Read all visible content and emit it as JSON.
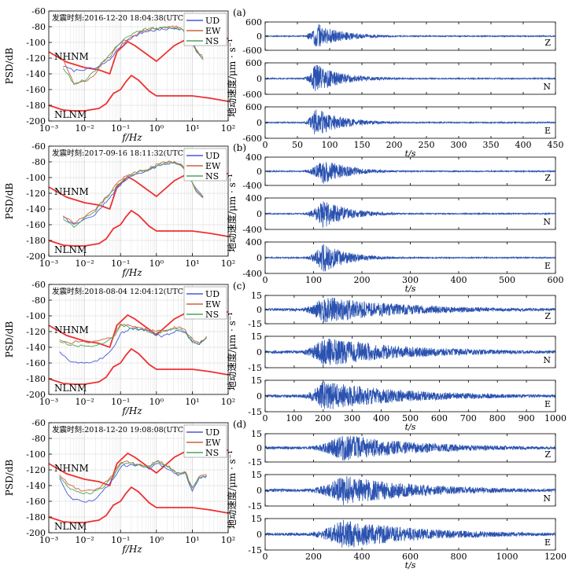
{
  "figure": {
    "psd_ylabel": "PSD/dB",
    "psd_xlabel": "f/Hz",
    "seis_ylabel": "地动速度/μm · s⁻¹",
    "seis_xlabel": "t/s",
    "colors": {
      "ud": "#4a58d8",
      "ew": "#d06040",
      "ns": "#4aa858",
      "nhnm": "#ee3030",
      "trace": "#2a52b0"
    }
  },
  "chart_data": [
    {
      "type": "line",
      "panel": "a",
      "psd": {
        "title": "发震时刻:2016-12-20 18:04:38(UTC+8)",
        "legend": [
          "UD",
          "EW",
          "NS"
        ],
        "nhnm_label": "NHNM",
        "nlnm_label": "NLNM",
        "xlim_log10": [
          -3,
          2
        ],
        "ylim": [
          -200,
          -60
        ],
        "xticks": [
          "10⁻³",
          "10⁻²",
          "10⁻¹",
          "10⁰",
          "10¹",
          "10²"
        ],
        "yticks": [
          "-200",
          "-180",
          "-160",
          "-140",
          "-120",
          "-100",
          "-80",
          "-60"
        ],
        "series": [
          {
            "name": "UD",
            "log10f": [
              -2.6,
              -2.3,
              -2.0,
              -1.7,
              -1.5,
              -1.3,
              -1.1,
              -0.9,
              -0.7,
              -0.5,
              -0.3,
              -0.1,
              0.1,
              0.3,
              0.5,
              0.7,
              0.9,
              1.1,
              1.3
            ],
            "db": [
              -130,
              -136,
              -134,
              -133,
              -128,
              -122,
              -110,
              -100,
              -94,
              -90,
              -86,
              -85,
              -84,
              -83,
              -82,
              -83,
              -92,
              -110,
              -122
            ]
          },
          {
            "name": "EW",
            "log10f": [
              -2.6,
              -2.3,
              -2.0,
              -1.7,
              -1.5,
              -1.3,
              -1.1,
              -0.9,
              -0.7,
              -0.5,
              -0.3,
              -0.1,
              0.1,
              0.3,
              0.5,
              0.7,
              0.9,
              1.1,
              1.3
            ],
            "db": [
              -120,
              -154,
              -150,
              -140,
              -126,
              -118,
              -106,
              -98,
              -92,
              -88,
              -84,
              -82,
              -82,
              -80,
              -80,
              -82,
              -90,
              -108,
              -120
            ]
          },
          {
            "name": "NS",
            "log10f": [
              -2.6,
              -2.3,
              -2.0,
              -1.7,
              -1.5,
              -1.3,
              -1.1,
              -0.9,
              -0.7,
              -0.5,
              -0.3,
              -0.1,
              0.1,
              0.3,
              0.5,
              0.7,
              0.9,
              1.1,
              1.3
            ],
            "db": [
              -132,
              -152,
              -148,
              -136,
              -124,
              -116,
              -104,
              -96,
              -90,
              -86,
              -83,
              -82,
              -82,
              -81,
              -81,
              -84,
              -92,
              -110,
              -122
            ]
          }
        ]
      },
      "seismograms": {
        "xlim": [
          0,
          450
        ],
        "xticks": [
          0,
          50,
          100,
          150,
          200,
          250,
          300,
          350,
          400,
          450
        ],
        "ylim": [
          -600,
          600
        ],
        "yticks": [
          600,
          0,
          -600
        ],
        "onset_s": 55,
        "peak_s": 78,
        "decay_s": 35,
        "noise_frac": 0.04,
        "components": [
          "Z",
          "N",
          "E"
        ]
      }
    },
    {
      "type": "line",
      "panel": "b",
      "psd": {
        "title": "发震时刻:2017-09-16 18:11:32(UTC)",
        "legend": [
          "UD",
          "EW",
          "NS"
        ],
        "nhnm_label": "NHNM",
        "nlnm_label": "NLNM",
        "xlim_log10": [
          -3,
          2
        ],
        "ylim": [
          -200,
          -60
        ],
        "xticks": [
          "10⁻³",
          "10⁻²",
          "10⁻¹",
          "10⁰",
          "10¹",
          "10²"
        ],
        "yticks": [
          "-200",
          "-180",
          "-160",
          "-140",
          "-120",
          "-100",
          "-80",
          "-60"
        ],
        "series": [
          {
            "name": "UD",
            "log10f": [
              -2.6,
              -2.3,
              -2.0,
              -1.7,
              -1.5,
              -1.3,
              -1.1,
              -0.9,
              -0.7,
              -0.5,
              -0.3,
              -0.1,
              0.1,
              0.3,
              0.5,
              0.7,
              0.9,
              1.1,
              1.3
            ],
            "db": [
              -150,
              -160,
              -154,
              -146,
              -136,
              -126,
              -114,
              -104,
              -98,
              -94,
              -92,
              -88,
              -84,
              -82,
              -82,
              -84,
              -95,
              -115,
              -125
            ]
          },
          {
            "name": "EW",
            "log10f": [
              -2.6,
              -2.3,
              -2.0,
              -1.7,
              -1.5,
              -1.3,
              -1.1,
              -0.9,
              -0.7,
              -0.5,
              -0.3,
              -0.1,
              0.1,
              0.3,
              0.5,
              0.7,
              0.9,
              1.1,
              1.3
            ],
            "db": [
              -148,
              -158,
              -150,
              -140,
              -130,
              -120,
              -108,
              -100,
              -96,
              -92,
              -90,
              -86,
              -82,
              -80,
              -80,
              -84,
              -96,
              -118,
              -126
            ]
          },
          {
            "name": "NS",
            "log10f": [
              -2.6,
              -2.3,
              -2.0,
              -1.7,
              -1.5,
              -1.3,
              -1.1,
              -0.9,
              -0.7,
              -0.5,
              -0.3,
              -0.1,
              0.1,
              0.3,
              0.5,
              0.7,
              0.9,
              1.1,
              1.3
            ],
            "db": [
              -152,
              -162,
              -152,
              -142,
              -132,
              -122,
              -110,
              -102,
              -97,
              -93,
              -91,
              -87,
              -83,
              -81,
              -81,
              -84,
              -96,
              -116,
              -124
            ]
          }
        ]
      },
      "seismograms": {
        "xlim": [
          0,
          600
        ],
        "xticks": [
          0,
          100,
          200,
          300,
          400,
          500,
          600
        ],
        "ylim": [
          -400,
          400
        ],
        "yticks": [
          400,
          0,
          -400
        ],
        "onset_s": 70,
        "peak_s": 120,
        "decay_s": 45,
        "noise_frac": 0.04,
        "components": [
          "Z",
          "N",
          "E"
        ]
      }
    },
    {
      "type": "line",
      "panel": "c",
      "psd": {
        "title": "发震时刻:2018-08-04 12:04:12(UTC+8)",
        "legend": [
          "UD",
          "EW",
          "NS"
        ],
        "nhnm_label": "NHNM",
        "nlnm_label": "NLNM",
        "xlim_log10": [
          -3,
          2
        ],
        "ylim": [
          -200,
          -60
        ],
        "xticks": [
          "10⁻³",
          "10⁻²",
          "10⁻¹",
          "10⁰",
          "10¹",
          "10²"
        ],
        "yticks": [
          "-200",
          "-180",
          "-160",
          "-140",
          "-120",
          "-100",
          "-80",
          "-60"
        ],
        "series": [
          {
            "name": "UD",
            "log10f": [
              -2.7,
              -2.4,
              -2.1,
              -1.8,
              -1.5,
              -1.2,
              -1.0,
              -0.8,
              -0.6,
              -0.4,
              -0.2,
              0.0,
              0.2,
              0.4,
              0.6,
              0.8,
              1.0,
              1.2,
              1.4
            ],
            "db": [
              -145,
              -158,
              -160,
              -160,
              -154,
              -140,
              -122,
              -118,
              -116,
              -118,
              -120,
              -124,
              -126,
              -122,
              -118,
              -120,
              -134,
              -136,
              -128
            ]
          },
          {
            "name": "EW",
            "log10f": [
              -2.7,
              -2.4,
              -2.1,
              -1.8,
              -1.5,
              -1.2,
              -1.0,
              -0.8,
              -0.6,
              -0.4,
              -0.2,
              0.0,
              0.2,
              0.4,
              0.6,
              0.8,
              1.0,
              1.2,
              1.4
            ],
            "db": [
              -130,
              -134,
              -132,
              -134,
              -130,
              -126,
              -110,
              -112,
              -114,
              -116,
              -118,
              -120,
              -118,
              -116,
              -114,
              -118,
              -130,
              -134,
              -126
            ]
          },
          {
            "name": "NS",
            "log10f": [
              -2.7,
              -2.4,
              -2.1,
              -1.8,
              -1.5,
              -1.2,
              -1.0,
              -0.8,
              -0.6,
              -0.4,
              -0.2,
              0.0,
              0.2,
              0.4,
              0.6,
              0.8,
              1.0,
              1.2,
              1.4
            ],
            "db": [
              -132,
              -138,
              -138,
              -140,
              -136,
              -128,
              -112,
              -114,
              -116,
              -118,
              -120,
              -122,
              -120,
              -118,
              -116,
              -120,
              -132,
              -136,
              -128
            ]
          }
        ]
      },
      "seismograms": {
        "xlim": [
          0,
          1000
        ],
        "xticks": [
          0,
          100,
          200,
          300,
          400,
          500,
          600,
          700,
          800,
          900,
          1000
        ],
        "ylim": [
          -15,
          15
        ],
        "yticks": [
          15,
          0,
          -15
        ],
        "onset_s": 90,
        "peak_s": 200,
        "decay_s": 260,
        "noise_frac": 0.1,
        "components": [
          "Z",
          "N",
          "E"
        ]
      }
    },
    {
      "type": "line",
      "panel": "d",
      "psd": {
        "title": "发震时刻:2018-12-20 19:08:08(UTC+8)",
        "legend": [
          "UD",
          "EW",
          "NS"
        ],
        "nhnm_label": "NHNM",
        "nlnm_label": "NLNM",
        "xlim_log10": [
          -3,
          2
        ],
        "ylim": [
          -200,
          -60
        ],
        "xticks": [
          "10⁻³",
          "10⁻²",
          "10⁻¹",
          "10⁰",
          "10¹",
          "10²"
        ],
        "yticks": [
          "-200",
          "-180",
          "-160",
          "-140",
          "-120",
          "-100",
          "-80",
          "-60"
        ],
        "series": [
          {
            "name": "UD",
            "log10f": [
              -2.7,
              -2.4,
              -2.1,
              -1.8,
              -1.5,
              -1.2,
              -1.0,
              -0.8,
              -0.6,
              -0.4,
              -0.2,
              0.0,
              0.2,
              0.4,
              0.6,
              0.8,
              1.0,
              1.2,
              1.4
            ],
            "db": [
              -130,
              -156,
              -160,
              -160,
              -148,
              -132,
              -116,
              -114,
              -114,
              -116,
              -118,
              -112,
              -116,
              -120,
              -128,
              -124,
              -146,
              -130,
              -128
            ]
          },
          {
            "name": "EW",
            "log10f": [
              -2.7,
              -2.4,
              -2.1,
              -1.8,
              -1.5,
              -1.2,
              -1.0,
              -0.8,
              -0.6,
              -0.4,
              -0.2,
              0.0,
              0.2,
              0.4,
              0.6,
              0.8,
              1.0,
              1.2,
              1.4
            ],
            "db": [
              -126,
              -140,
              -146,
              -146,
              -140,
              -126,
              -110,
              -110,
              -112,
              -114,
              -116,
              -108,
              -112,
              -118,
              -124,
              -122,
              -142,
              -128,
              -126
            ]
          },
          {
            "name": "NS",
            "log10f": [
              -2.7,
              -2.4,
              -2.1,
              -1.8,
              -1.5,
              -1.2,
              -1.0,
              -0.8,
              -0.6,
              -0.4,
              -0.2,
              0.0,
              0.2,
              0.4,
              0.6,
              0.8,
              1.0,
              1.2,
              1.4
            ],
            "db": [
              -128,
              -144,
              -150,
              -150,
              -142,
              -128,
              -112,
              -112,
              -113,
              -115,
              -117,
              -110,
              -114,
              -119,
              -126,
              -123,
              -144,
              -129,
              -127
            ]
          }
        ]
      },
      "seismograms": {
        "xlim": [
          0,
          1200
        ],
        "xticks": [
          0,
          200,
          400,
          600,
          800,
          1000,
          1200
        ],
        "ylim": [
          -15,
          15
        ],
        "yticks": [
          15,
          0,
          -15
        ],
        "onset_s": 110,
        "peak_s": 320,
        "decay_s": 300,
        "noise_frac": 0.1,
        "components": [
          "Z",
          "N",
          "E"
        ]
      }
    }
  ],
  "noise_models": {
    "nhnm": {
      "log10f": [
        -3.0,
        -2.5,
        -2.0,
        -1.6,
        -1.3,
        -1.1,
        -0.8,
        -0.6,
        0.0,
        0.5,
        1.0,
        1.3,
        2.0
      ],
      "db": [
        -112,
        -125,
        -132,
        -135,
        -140,
        -112,
        -99,
        -104,
        -124,
        -104,
        -92,
        -94,
        -95
      ]
    },
    "nlnm": {
      "log10f": [
        -3.0,
        -2.6,
        -2.3,
        -2.0,
        -1.6,
        -1.4,
        -1.2,
        -1.0,
        -0.85,
        -0.7,
        -0.5,
        -0.2,
        0.0,
        0.5,
        1.0,
        1.5,
        2.0
      ],
      "db": [
        -180,
        -186,
        -187,
        -187,
        -184,
        -178,
        -165,
        -160,
        -150,
        -142,
        -148,
        -162,
        -168,
        -168,
        -168,
        -171,
        -175
      ]
    }
  }
}
